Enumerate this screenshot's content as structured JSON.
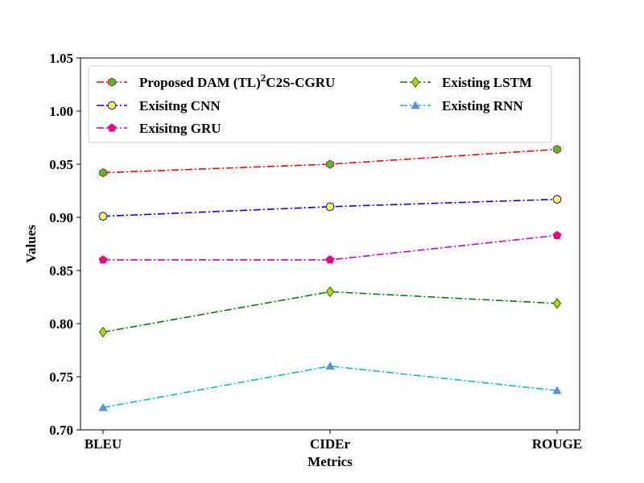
{
  "chart_data": {
    "type": "line",
    "title": "",
    "xlabel": "Metrics",
    "ylabel": "Values",
    "categories": [
      "BLEU",
      "CIDEr",
      "ROUGE"
    ],
    "ylim": [
      0.7,
      1.05
    ],
    "yticks": [
      "0.70",
      "0.75",
      "0.80",
      "0.85",
      "0.90",
      "0.95",
      "1.00",
      "1.05"
    ],
    "grid": false,
    "legend_placement": "top, two columns",
    "series": [
      {
        "name": "Proposed DAM (TL)²C2S-CGRU",
        "name_main": "Proposed DAM (TL)",
        "name_sup": "2",
        "name_tail": "C2S-CGRU",
        "values": [
          0.942,
          0.95,
          0.964
        ],
        "color": "#ff0000",
        "marker": "hexagon",
        "marker_fill": "#33cc33"
      },
      {
        "name": "Exisitng CNN",
        "values": [
          0.901,
          0.91,
          0.917
        ],
        "color": "#0000ff",
        "marker": "octagon",
        "marker_fill": "#ffff33"
      },
      {
        "name": "Exisitng GRU",
        "values": [
          0.86,
          0.86,
          0.883
        ],
        "color": "#cc00cc",
        "marker": "pentagon",
        "marker_fill": "#ff0066"
      },
      {
        "name": "Existing LSTM",
        "values": [
          0.792,
          0.83,
          0.819
        ],
        "color": "#008000",
        "marker": "diamond",
        "marker_fill": "#cccc00"
      },
      {
        "name": "Existing RNN",
        "values": [
          0.721,
          0.76,
          0.737
        ],
        "color": "#00bfbf",
        "marker": "triangle",
        "marker_fill": "#a066ff"
      }
    ]
  }
}
